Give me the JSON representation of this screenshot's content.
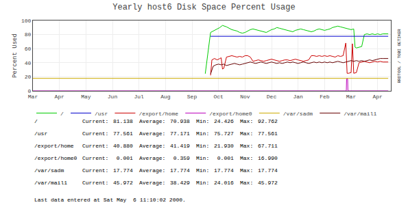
{
  "chart_data": {
    "type": "line",
    "title": "Yearly host6 Disk Space Percent Usage",
    "y_label": "Percent Used",
    "xlim": [
      0,
      13.5
    ],
    "xticks": [
      {
        "value": 0,
        "label": "Mar"
      },
      {
        "value": 1,
        "label": "Apr"
      },
      {
        "value": 2,
        "label": "May"
      },
      {
        "value": 3,
        "label": "Jun"
      },
      {
        "value": 4,
        "label": "Jul"
      },
      {
        "value": 5,
        "label": "Aug"
      },
      {
        "value": 6,
        "label": "Sep"
      },
      {
        "value": 7,
        "label": "Oct"
      },
      {
        "value": 8,
        "label": "Nov"
      },
      {
        "value": 9,
        "label": "Dec"
      },
      {
        "value": 10,
        "label": "Jan"
      },
      {
        "value": 11,
        "label": "Feb"
      },
      {
        "value": 12,
        "label": "Mar"
      },
      {
        "value": 13,
        "label": "Apr"
      }
    ],
    "ylim": [
      0,
      100
    ],
    "yticks": [
      0,
      20,
      40,
      60,
      80,
      100
    ],
    "grid": true,
    "legend": "bottom",
    "series": [
      {
        "name": "/",
        "color": "#00cc00",
        "x": [
          6.5,
          6.7,
          7.05,
          7.15,
          7.3,
          7.5,
          7.6,
          7.7,
          7.8,
          7.9,
          8.0,
          8.1,
          8.2,
          8.3,
          8.4,
          8.5,
          8.6,
          8.7,
          8.8,
          8.9,
          9.0,
          9.1,
          9.2,
          9.3,
          9.4,
          9.5,
          9.6,
          9.7,
          9.8,
          9.9,
          10.0,
          10.1,
          10.2,
          10.3,
          10.4,
          10.5,
          10.6,
          10.7,
          10.8,
          10.9,
          11.0,
          11.1,
          11.2,
          11.3,
          11.4,
          11.5,
          11.6,
          11.7,
          11.8,
          11.9,
          12.0,
          12.1,
          12.15,
          12.2,
          12.3,
          12.4,
          12.5,
          12.6,
          12.7,
          12.8,
          12.9,
          13.0,
          13.1,
          13.2,
          13.4
        ],
        "values": [
          24.4,
          83,
          90,
          93,
          91,
          87,
          86,
          85,
          83,
          82,
          83,
          85,
          87,
          88,
          87,
          86,
          85,
          84,
          83,
          85,
          87,
          88,
          90,
          89,
          88,
          87,
          86,
          85,
          84,
          86,
          87,
          88,
          87,
          86,
          85,
          84,
          85,
          87,
          88,
          87,
          86,
          87,
          88,
          90,
          91,
          92,
          91,
          90,
          89,
          88,
          87,
          88,
          62,
          61,
          62,
          63,
          80,
          81,
          80,
          81,
          80,
          81,
          80,
          81,
          81
        ]
      },
      {
        "name": "/usr",
        "color": "#0000cc",
        "x": [
          6.7,
          13.4
        ],
        "values": [
          77.56,
          77.56
        ]
      },
      {
        "name": "/export/home",
        "color": "#cc0000",
        "x": [
          6.7,
          6.75,
          6.85,
          6.95,
          7.05,
          7.1,
          7.15,
          7.2,
          7.3,
          7.4,
          7.5,
          7.6,
          7.7,
          7.8,
          7.9,
          8.0,
          8.1,
          8.2,
          8.3,
          8.4,
          8.5,
          8.6,
          8.7,
          8.8,
          8.9,
          9.0,
          9.1,
          9.2,
          9.3,
          9.4,
          9.5,
          9.6,
          9.7,
          9.8,
          9.9,
          10.0,
          10.1,
          10.2,
          10.3,
          10.4,
          10.5,
          10.6,
          10.7,
          10.8,
          10.9,
          11.0,
          11.1,
          11.2,
          11.3,
          11.4,
          11.5,
          11.6,
          11.7,
          11.8,
          11.85,
          11.9,
          12.0,
          12.05,
          12.1,
          12.2,
          12.3,
          12.4,
          12.5,
          12.6,
          12.7,
          12.8,
          12.9,
          13.0,
          13.1,
          13.2,
          13.4
        ],
        "values": [
          22,
          44,
          46,
          44,
          46,
          47,
          31,
          32,
          48,
          49,
          50,
          49,
          48,
          49,
          48,
          50,
          50,
          48,
          42,
          43,
          44,
          43,
          42,
          43,
          44,
          45,
          44,
          43,
          42,
          43,
          44,
          44,
          43,
          44,
          45,
          44,
          43,
          42,
          43,
          44,
          50,
          50,
          49,
          50,
          49,
          50,
          49,
          50,
          49,
          48,
          50,
          49,
          50,
          68,
          25,
          25,
          26,
          67,
          25,
          26,
          40,
          41,
          42,
          41,
          40,
          41,
          42,
          41,
          42,
          41,
          41
        ]
      },
      {
        "name": "/export/home0",
        "color": "#bb00bb",
        "x": [
          0,
          11.82,
          11.83,
          11.87,
          11.88,
          13.4
        ],
        "values": [
          0,
          0,
          17,
          17,
          0,
          0
        ]
      },
      {
        "name": "/var/sadm",
        "color": "#ccaa00",
        "x": [
          0,
          13.4
        ],
        "values": [
          17.774,
          17.774
        ]
      },
      {
        "name": "/var/mail1",
        "color": "#660000",
        "x": [
          6.7,
          6.8,
          6.9,
          7.0,
          7.1,
          7.2,
          7.3,
          7.4,
          7.5,
          7.6,
          7.7,
          7.8,
          7.9,
          8.0,
          8.1,
          8.2,
          8.3,
          8.4,
          8.5,
          8.6,
          8.7,
          8.8,
          8.9,
          9.0,
          9.1,
          9.2,
          9.3,
          9.4,
          9.5,
          9.6,
          9.7,
          9.8,
          9.9,
          10.0,
          10.1,
          10.2,
          10.3,
          10.4,
          10.5,
          10.6,
          10.7,
          10.8,
          10.9,
          11.0,
          11.1,
          11.2,
          11.3,
          11.4,
          11.5,
          11.6,
          11.7,
          11.8,
          11.9,
          12.0,
          12.1,
          12.2,
          12.3,
          12.4,
          12.5,
          12.6,
          12.7,
          12.8,
          12.9,
          13.0,
          13.1,
          13.2,
          13.4
        ],
        "values": [
          24,
          35,
          37,
          38,
          37,
          38,
          36,
          37,
          38,
          39,
          38,
          37,
          38,
          39,
          40,
          41,
          40,
          39,
          40,
          41,
          40,
          39,
          40,
          41,
          40,
          39,
          40,
          39,
          40,
          41,
          40,
          41,
          40,
          39,
          40,
          41,
          40,
          39,
          40,
          41,
          40,
          41,
          40,
          41,
          40,
          41,
          40,
          41,
          42,
          41,
          40,
          41,
          42,
          43,
          42,
          43,
          42,
          43,
          42,
          43,
          44,
          43,
          44,
          45,
          46,
          46,
          46
        ]
      }
    ],
    "annotations": [
      "RRDTOOL / TOBI OETIKER"
    ],
    "table": [
      [
        "/",
        "Current:",
        "81.138",
        "Average:",
        "70.938",
        "Min:",
        "24.426",
        "Max:",
        "92.762"
      ],
      [
        "/usr",
        "Current:",
        "77.561",
        "Average:",
        "77.171",
        "Min:",
        "75.727",
        "Max:",
        "77.561"
      ],
      [
        "/export/home",
        "Current:",
        "40.880",
        "Average:",
        "41.419",
        "Min:",
        "21.930",
        "Max:",
        "67.711"
      ],
      [
        "/export/home0",
        "Current:",
        " 0.001",
        "Average:",
        " 0.359",
        "Min:",
        " 0.001",
        "Max:",
        "16.990"
      ],
      [
        "/var/sadm",
        "Current:",
        "17.774",
        "Average:",
        "17.774",
        "Min:",
        "17.774",
        "Max:",
        "17.774"
      ],
      [
        "/var/mail1",
        "Current:",
        "45.972",
        "Average:",
        "38.429",
        "Min:",
        "24.016",
        "Max:",
        "45.972"
      ]
    ],
    "footer": "Last data entered at Sat May  6 11:10:02 2000."
  }
}
